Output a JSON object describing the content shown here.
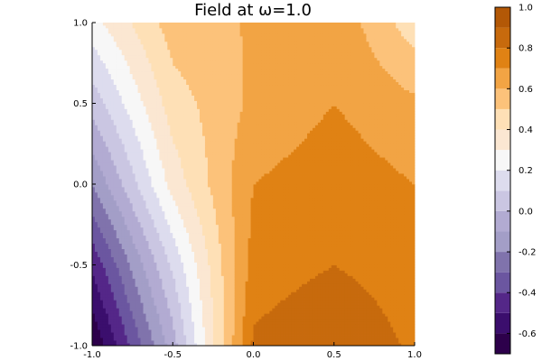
{
  "chart_data": {
    "type": "contour",
    "title": "Field at ω=1.0",
    "x": [
      -1.0,
      -0.5,
      0.0,
      0.5,
      1.0
    ],
    "y": [
      -1.0,
      -0.5,
      0.0,
      0.5,
      1.0
    ],
    "z": [
      [
        -0.7,
        -0.05,
        0.82,
        0.9,
        0.78
      ],
      [
        -0.48,
        0.12,
        0.74,
        0.8,
        0.74
      ],
      [
        -0.2,
        0.34,
        0.7,
        0.76,
        0.7
      ],
      [
        0.04,
        0.45,
        0.62,
        0.7,
        0.62
      ],
      [
        0.26,
        0.55,
        0.61,
        0.68,
        0.44
      ]
    ],
    "xlim": [
      -1.0,
      1.0
    ],
    "ylim": [
      -1.0,
      1.0
    ],
    "xticks": [
      "-1.0",
      "-0.5",
      "0.0",
      "0.5",
      "1.0"
    ],
    "yticks": [
      "-1.0",
      "-0.5",
      "0.0",
      "0.5",
      "1.0"
    ],
    "colorbar": {
      "range": [
        -0.7,
        1.0
      ],
      "levels": [
        -0.7,
        -0.6,
        -0.5,
        -0.4,
        -0.3,
        -0.2,
        -0.1,
        0.0,
        0.1,
        0.2,
        0.3,
        0.4,
        0.5,
        0.6,
        0.7,
        0.8,
        0.9,
        1.0
      ],
      "tick_values": [
        -0.6,
        -0.4,
        -0.2,
        0.0,
        0.2,
        0.4,
        0.6,
        0.8,
        1.0
      ],
      "tick_labels": [
        "-0.6",
        "-0.4",
        "-0.2",
        "0.0",
        "0.2",
        "0.4",
        "0.6",
        "0.8",
        "1.0"
      ],
      "colors": [
        "#2d004b",
        "#3b0e6d",
        "#542788",
        "#6b56a0",
        "#8073ac",
        "#a39ec7",
        "#b2abd2",
        "#cac6e2",
        "#dddcee",
        "#f7f7f7",
        "#fbe7d2",
        "#fee0b6",
        "#fcc27a",
        "#f2a444",
        "#e08214",
        "#c76a0d",
        "#b35806",
        "#8f3e05"
      ]
    },
    "grid": false,
    "legend": "none"
  }
}
